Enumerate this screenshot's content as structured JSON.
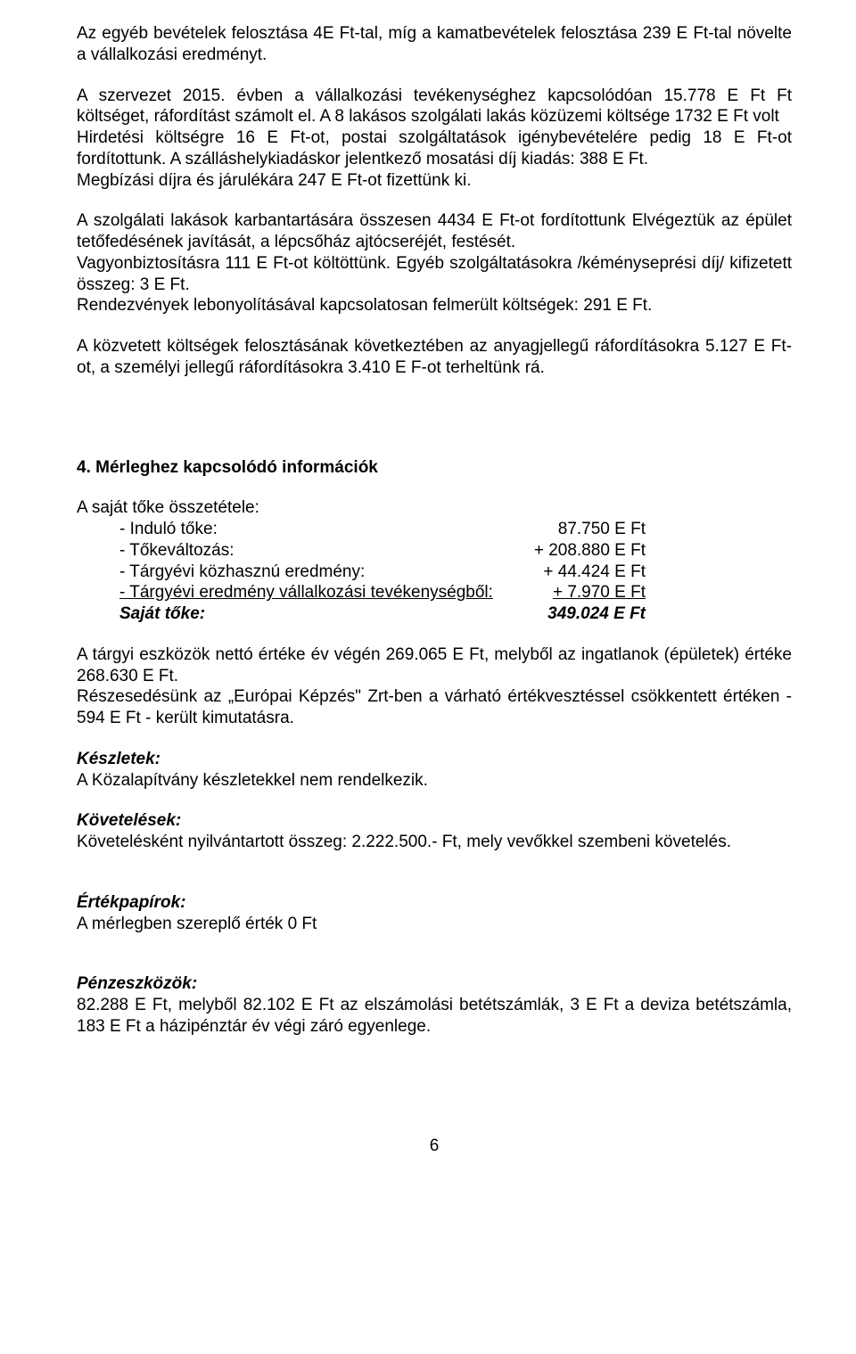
{
  "p1": "Az egyéb bevételek felosztása 4E Ft-tal, míg a kamatbevételek felosztása 239 E Ft-tal növelte a vállalkozási eredményt.",
  "p2": "A szervezet 2015. évben a vállalkozási tevékenységhez kapcsolódóan 15.778 E Ft Ft költséget, ráfordítást számolt el. A 8 lakásos szolgálati lakás közüzemi költsége 1732 E Ft volt",
  "p3": "Hirdetési költségre 16 E Ft-ot, postai szolgáltatások igénybevételére pedig 18 E Ft-ot fordítottunk. A szálláshelykiadáskor jelentkező mosatási díj kiadás: 388 E Ft.",
  "p4": "Megbízási díjra és járulékára 247 E Ft-ot fizettünk ki.",
  "p5": "A szolgálati lakások karbantartására összesen 4434 E Ft-ot fordítottunk Elvégeztük az épület tetőfedésének javítását, a lépcsőház ajtócseréjét, festését.",
  "p6": "Vagyonbiztosításra 111 E Ft-ot költöttünk. Egyéb szolgáltatásokra /kéményseprési díj/ kifizetett összeg: 3 E Ft.",
  "p7": "Rendezvények lebonyolításával kapcsolatosan felmerült költségek: 291 E Ft.",
  "p8": "A közvetett költségek felosztásának következtében az anyagjellegű ráfordításokra 5.127 E Ft-ot, a személyi jellegű ráfordításokra 3.410 E F-ot terheltünk rá.",
  "s4_title": "4.   Mérleghez kapcsolódó információk",
  "equity_title": "A saját tőke összetétele:",
  "equity": {
    "r1": {
      "label": "- Induló tőke:",
      "value": "87.750 E Ft"
    },
    "r2": {
      "label": "- Tőkeváltozás:",
      "value": "+ 208.880 E Ft"
    },
    "r3": {
      "label": "- Tárgyévi közhasznú eredmény:",
      "value": "+ 44.424 E Ft"
    },
    "r4": {
      "label": "- Tárgyévi eredmény vállalkozási tevékenységből:",
      "value": "+    7.970 E Ft"
    },
    "r5": {
      "label": "Saját tőke:",
      "value": "349.024 E Ft"
    }
  },
  "p9": "A tárgyi eszközök nettó értéke év végén 269.065 E Ft, melyből az ingatlanok (épületek) értéke 268.630 E Ft.",
  "p10": "Részesedésünk az „Európai Képzés\" Zrt-ben a várható értékvesztéssel csökkentett értéken - 594 E Ft - került kimutatásra.",
  "h_keszletek": "Készletek:",
  "p11": "A Közalapítvány készletekkel nem rendelkezik.",
  "h_kovetelesek": "Követelések:",
  "p12": "Követelésként nyilvántartott összeg: 2.222.500.- Ft, mely vevőkkel szembeni követelés.",
  "h_ertekpapir": "Értékpapírok:",
  "p13": "A mérlegben szereplő érték 0 Ft",
  "h_penzeszkoz": "Pénzeszközök:",
  "p14": "82.288 E Ft, melyből 82.102 E Ft az elszámolási betétszámlák, 3 E Ft a deviza betétszámla, 183 E Ft a házipénztár év végi záró egyenlege.",
  "page_number": "6"
}
